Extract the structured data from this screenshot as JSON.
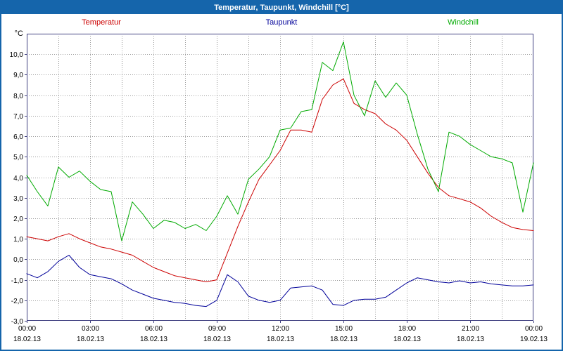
{
  "window": {
    "title": "Temperatur, Taupunkt, Windchill [°C]"
  },
  "colors": {
    "frame": "#1565ab",
    "titlebar_bg": "#1565ab",
    "titlebar_text": "#ffffff",
    "plot_border": "#404080",
    "grid": "#9c9c9c",
    "tick_text": "#000000",
    "background": "#ffffff"
  },
  "chart_data": {
    "type": "line",
    "title": "Temperatur, Taupunkt, Windchill [°C]",
    "ylabel": "°C",
    "xlabel": "",
    "ylim": [
      -3,
      11
    ],
    "grid": "dotted",
    "legend_position": "top",
    "x_unit": "hours",
    "x_hours": [
      0,
      0.5,
      1,
      1.5,
      2,
      2.5,
      3,
      3.5,
      4,
      4.5,
      5,
      5.5,
      6,
      6.5,
      7,
      7.5,
      8,
      8.5,
      9,
      9.5,
      10,
      10.5,
      11,
      11.5,
      12,
      12.5,
      13,
      13.5,
      14,
      14.5,
      15,
      15.5,
      16,
      16.5,
      17,
      17.5,
      18,
      18.5,
      19,
      19.5,
      20,
      20.5,
      21,
      21.5,
      22,
      22.5,
      23,
      23.5,
      24
    ],
    "yticks": {
      "values": [
        -3,
        -2,
        -1,
        0,
        1,
        2,
        3,
        4,
        5,
        6,
        7,
        8,
        9,
        10
      ],
      "labels": [
        "-3,0",
        "-2,0",
        "-1,0",
        "0,0",
        "1,0",
        "2,0",
        "3,0",
        "4,0",
        "5,0",
        "6,0",
        "7,0",
        "8,0",
        "9,0",
        "10,0"
      ]
    },
    "xticks": {
      "hours": [
        0,
        3,
        6,
        9,
        12,
        15,
        18,
        21,
        24
      ],
      "time_labels": [
        "00:00",
        "03:00",
        "06:00",
        "09:00",
        "12:00",
        "15:00",
        "18:00",
        "21:00",
        "00:00"
      ],
      "date_labels": [
        "18.02.13",
        "18.02.13",
        "18.02.13",
        "18.02.13",
        "18.02.13",
        "18.02.13",
        "18.02.13",
        "18.02.13",
        "19.02.13"
      ]
    },
    "minor_x_step_hours": 1.5,
    "series": [
      {
        "name": "Temperatur",
        "color": "#cc0000",
        "values": [
          1.1,
          1.0,
          0.9,
          1.1,
          1.25,
          1.0,
          0.8,
          0.6,
          0.5,
          0.35,
          0.2,
          -0.1,
          -0.4,
          -0.6,
          -0.8,
          -0.9,
          -1.0,
          -1.1,
          -1.0,
          0.3,
          1.6,
          2.8,
          3.9,
          4.6,
          5.3,
          6.3,
          6.3,
          6.2,
          7.8,
          8.5,
          8.8,
          7.6,
          7.3,
          7.1,
          6.6,
          6.3,
          5.8,
          5.0,
          4.2,
          3.5,
          3.1,
          2.95,
          2.8,
          2.5,
          2.1,
          1.8,
          1.55,
          1.45,
          1.4
        ]
      },
      {
        "name": "Taupunkt",
        "color": "#000099",
        "values": [
          -0.7,
          -0.9,
          -0.6,
          -0.1,
          0.2,
          -0.4,
          -0.75,
          -0.85,
          -0.95,
          -1.2,
          -1.5,
          -1.7,
          -1.9,
          -2.0,
          -2.1,
          -2.15,
          -2.25,
          -2.3,
          -2.0,
          -0.75,
          -1.1,
          -1.8,
          -2.0,
          -2.1,
          -2.0,
          -1.4,
          -1.35,
          -1.3,
          -1.5,
          -2.2,
          -2.25,
          -2.0,
          -1.95,
          -1.95,
          -1.85,
          -1.5,
          -1.15,
          -0.9,
          -1.0,
          -1.1,
          -1.15,
          -1.05,
          -1.15,
          -1.1,
          -1.2,
          -1.25,
          -1.3,
          -1.3,
          -1.25
        ]
      },
      {
        "name": "Windchill",
        "color": "#00aa00",
        "values": [
          4.1,
          3.3,
          2.6,
          4.5,
          4.0,
          4.3,
          3.8,
          3.4,
          3.3,
          0.9,
          2.8,
          2.2,
          1.5,
          1.9,
          1.8,
          1.5,
          1.7,
          1.4,
          2.1,
          3.1,
          2.2,
          3.9,
          4.4,
          5.0,
          6.3,
          6.4,
          7.2,
          7.3,
          9.6,
          9.2,
          10.6,
          8.0,
          7.0,
          8.7,
          7.9,
          8.6,
          8.0,
          6.1,
          4.4,
          3.3,
          6.2,
          6.0,
          5.6,
          5.3,
          5.0,
          4.9,
          4.7,
          2.3,
          4.7
        ]
      }
    ]
  }
}
